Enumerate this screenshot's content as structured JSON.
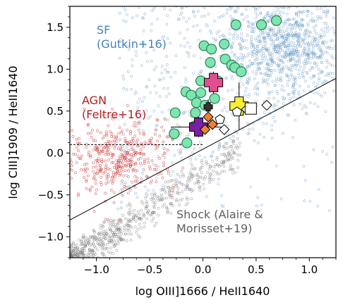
{
  "chart_data": {
    "type": "scatter",
    "xlabel": "log OIII]1666 / HeII1640",
    "ylabel": "log CIII]1909 / HeII1640",
    "xlim": [
      -1.25,
      1.25
    ],
    "ylim": [
      -1.25,
      1.75
    ],
    "x_ticks": [
      "−1.0",
      "−0.5",
      "0.0",
      "0.5",
      "1.0"
    ],
    "y_ticks": [
      "−1.0",
      "−0.5",
      "0.0",
      "0.5",
      "1.0",
      "1.5"
    ],
    "grid": false,
    "annotations": {
      "sf": {
        "lines": [
          "SF",
          "(Gutkin+16)"
        ],
        "color": "#4682b4"
      },
      "agn": {
        "lines": [
          "AGN",
          "(Feltre+16)"
        ],
        "color": "#b22222"
      },
      "shock": {
        "lines": [
          "Shock (Alaire &",
          "Morisset+19)"
        ],
        "color": "#606060"
      }
    },
    "lines": [
      {
        "name": "diagonal",
        "x": [
          -1.25,
          1.25
        ],
        "y": [
          -0.8,
          0.89
        ],
        "style": "solid",
        "color": "#000000"
      },
      {
        "name": "agn-threshold",
        "x": [
          -1.25,
          0.0
        ],
        "y": [
          0.1,
          0.1
        ],
        "style": "dashed",
        "color": "#000000"
      }
    ],
    "series": [
      {
        "kind": "green-circles",
        "color": "#7fe5b0",
        "points": [
          [
            0.01,
            1.28
          ],
          [
            0.08,
            1.24
          ],
          [
            0.2,
            1.3
          ],
          [
            0.31,
            1.53
          ],
          [
            0.55,
            1.53
          ],
          [
            0.69,
            1.58
          ],
          [
            0.07,
            1.08
          ],
          [
            0.21,
            1.12
          ],
          [
            0.27,
            1.05
          ],
          [
            0.3,
            1.02
          ],
          [
            0.36,
            0.97
          ],
          [
            -0.02,
            0.86
          ],
          [
            0.14,
            0.86
          ],
          [
            -0.16,
            0.73
          ],
          [
            -0.11,
            0.69
          ],
          [
            -0.02,
            0.72
          ],
          [
            0.11,
            0.65
          ],
          [
            -0.06,
            0.6
          ],
          [
            0.02,
            0.57
          ],
          [
            -0.07,
            0.48
          ],
          [
            -0.26,
            0.48
          ],
          [
            -0.08,
            0.32
          ],
          [
            -0.27,
            0.23
          ],
          [
            -0.15,
            0.12
          ]
        ]
      },
      {
        "kind": "plus-markers",
        "points": [
          {
            "x": 0.1,
            "y": 0.84,
            "color": "#e0508e",
            "xerr": 0.04,
            "yerr": 0.13
          },
          {
            "x": 0.34,
            "y": 0.56,
            "color": "#f7f032",
            "xerr": 0.09,
            "yerr": 0.28
          },
          {
            "x": -0.04,
            "y": 0.31,
            "color": "#7b1fa2",
            "xerr": 0.26,
            "yerr": 0.12
          },
          {
            "x": 0.05,
            "y": 0.55,
            "color": "#333333",
            "xerr": 0.04,
            "yerr": 0.09
          }
        ]
      },
      {
        "kind": "diamonds",
        "points": [
          {
            "x": 0.2,
            "y": 0.28,
            "color": "#ffffff"
          },
          {
            "x": 0.41,
            "y": 0.52,
            "color": "#ffffff"
          },
          {
            "x": 0.6,
            "y": 0.57,
            "color": "#ffffff"
          },
          {
            "x": 0.05,
            "y": 0.43,
            "color": "#f08030"
          },
          {
            "x": 0.09,
            "y": 0.34,
            "color": "#f08030"
          },
          {
            "x": 0.02,
            "y": 0.28,
            "color": "#f08030"
          }
        ]
      },
      {
        "kind": "pentagons",
        "points": [
          {
            "x": 0.16,
            "y": 0.4,
            "color": "#ffffff"
          },
          {
            "x": 0.32,
            "y": 0.49,
            "color": "#ffffff"
          }
        ]
      },
      {
        "kind": "squares",
        "points": [
          {
            "x": 0.45,
            "y": 0.53,
            "color": "#ffffff"
          }
        ]
      }
    ],
    "scatter_clouds": {
      "sf_color": "#4682b4",
      "agn_color": "#cd2626",
      "shock_color": "#707070"
    }
  }
}
